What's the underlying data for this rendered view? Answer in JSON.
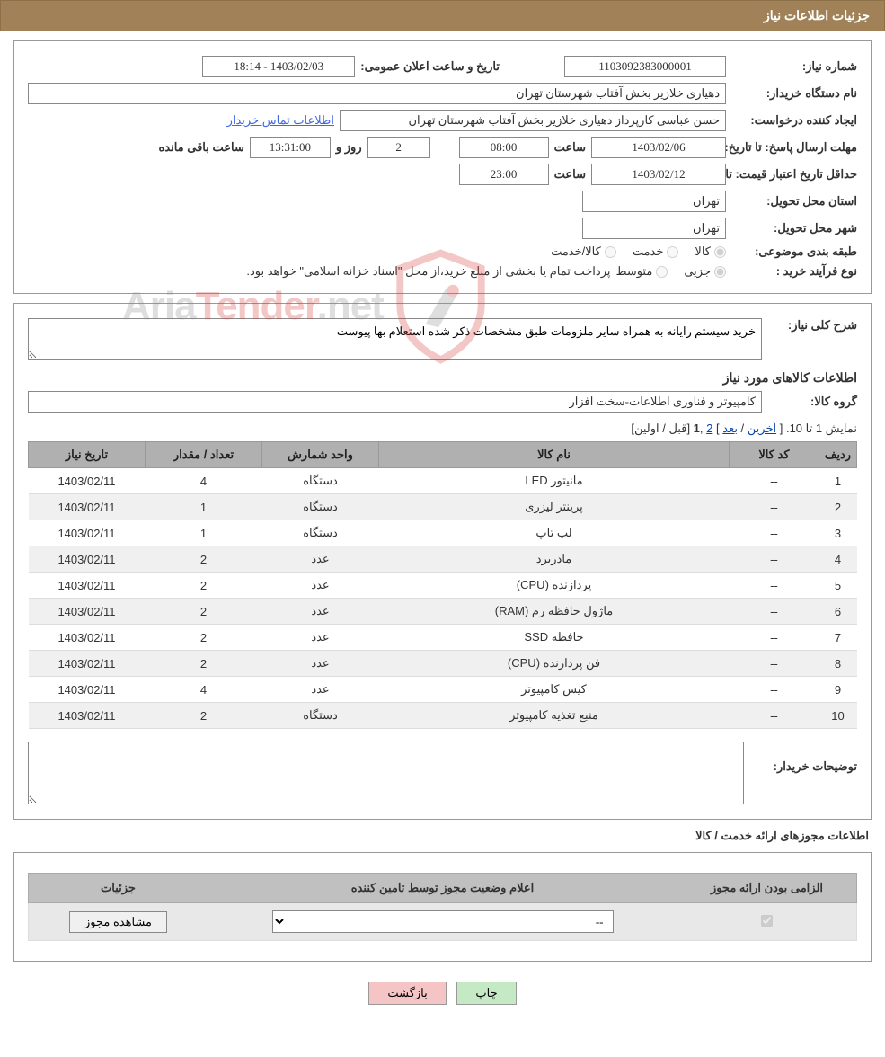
{
  "header": {
    "title": "جزئیات اطلاعات نیاز"
  },
  "info": {
    "need_number_label": "شماره نیاز:",
    "need_number": "1103092383000001",
    "announce_label": "تاریخ و ساعت اعلان عمومی:",
    "announce_value": "1403/02/03 - 18:14",
    "buyer_org_label": "نام دستگاه خریدار:",
    "buyer_org": "دهیاری خلازیر بخش آفتاب شهرستان تهران",
    "requester_label": "ایجاد کننده درخواست:",
    "requester": "حسن عباسی کارپرداز دهیاری خلازیر بخش آفتاب شهرستان تهران",
    "contact_link": "اطلاعات تماس خریدار",
    "deadline_label": "مهلت ارسال پاسخ: تا تاریخ:",
    "deadline_date": "1403/02/06",
    "time_label": "ساعت",
    "deadline_time": "08:00",
    "days_label": "روز و",
    "days_remaining": "2",
    "remaining_time": "13:31:00",
    "remaining_suffix": "ساعت باقی مانده",
    "validity_label": "حداقل تاریخ اعتبار قیمت: تا تاریخ:",
    "validity_date": "1403/02/12",
    "validity_time": "23:00",
    "province_label": "استان محل تحویل:",
    "province": "تهران",
    "city_label": "شهر محل تحویل:",
    "city": "تهران",
    "category_label": "طبقه بندی موضوعی:",
    "cat_goods": "کالا",
    "cat_service": "خدمت",
    "cat_both": "کالا/خدمت",
    "process_label": "نوع فرآیند خرید :",
    "proc_partial": "جزیی",
    "proc_medium": "متوسط",
    "process_note": "پرداخت تمام یا بخشی از مبلغ خرید،از محل \"اسناد خزانه اسلامی\" خواهد بود."
  },
  "details": {
    "overview_label": "شرح کلی نیاز:",
    "overview_text": "خرید سیستم رایانه به همراه سایر ملزومات طبق مشخصات ذکر شده استعلام بها پیوست",
    "items_title": "اطلاعات کالاهای مورد نیاز",
    "group_label": "گروه کالا:",
    "group_value": "کامپیوتر و فناوری اطلاعات-سخت افزار",
    "pagination_pre": "نمایش 1 تا 10. [ ",
    "pg_last": "آخرین",
    "pg_sep1": " / ",
    "pg_next": "بعد",
    "pg_sep2": " ] ",
    "pg_2": "2",
    "pg_sep3": " ,",
    "pg_1": "1",
    "pg_post": " [قبل / اولین]",
    "columns": [
      "ردیف",
      "کد کالا",
      "نام کالا",
      "واحد شمارش",
      "تعداد / مقدار",
      "تاریخ نیاز"
    ],
    "rows": [
      [
        "1",
        "--",
        "مانیتور LED",
        "دستگاه",
        "4",
        "1403/02/11"
      ],
      [
        "2",
        "--",
        "پرینتر لیزری",
        "دستگاه",
        "1",
        "1403/02/11"
      ],
      [
        "3",
        "--",
        "لپ تاپ",
        "دستگاه",
        "1",
        "1403/02/11"
      ],
      [
        "4",
        "--",
        "مادربرد",
        "عدد",
        "2",
        "1403/02/11"
      ],
      [
        "5",
        "--",
        "پردازنده (CPU)",
        "عدد",
        "2",
        "1403/02/11"
      ],
      [
        "6",
        "--",
        "ماژول حافظه رم (RAM)",
        "عدد",
        "2",
        "1403/02/11"
      ],
      [
        "7",
        "--",
        "حافظه SSD",
        "عدد",
        "2",
        "1403/02/11"
      ],
      [
        "8",
        "--",
        "فن پردازنده (CPU)",
        "عدد",
        "2",
        "1403/02/11"
      ],
      [
        "9",
        "--",
        "کیس کامپیوتر",
        "عدد",
        "4",
        "1403/02/11"
      ],
      [
        "10",
        "--",
        "منبع تغذیه کامپیوتر",
        "دستگاه",
        "2",
        "1403/02/11"
      ]
    ],
    "buyer_notes_label": "توضیحات خریدار:",
    "buyer_notes": ""
  },
  "license": {
    "title": "اطلاعات مجوزهای ارائه خدمت / کالا",
    "col_mandatory": "الزامی بودن ارائه مجوز",
    "col_status": "اعلام وضعیت مجوز توسط تامین کننده",
    "col_details": "جزئیات",
    "status_value": "--",
    "view_btn": "مشاهده مجوز"
  },
  "buttons": {
    "print": "چاپ",
    "back": "بازگشت"
  },
  "watermark": {
    "t1": "Aria",
    "t2": "Tender",
    "t3": ".net"
  }
}
